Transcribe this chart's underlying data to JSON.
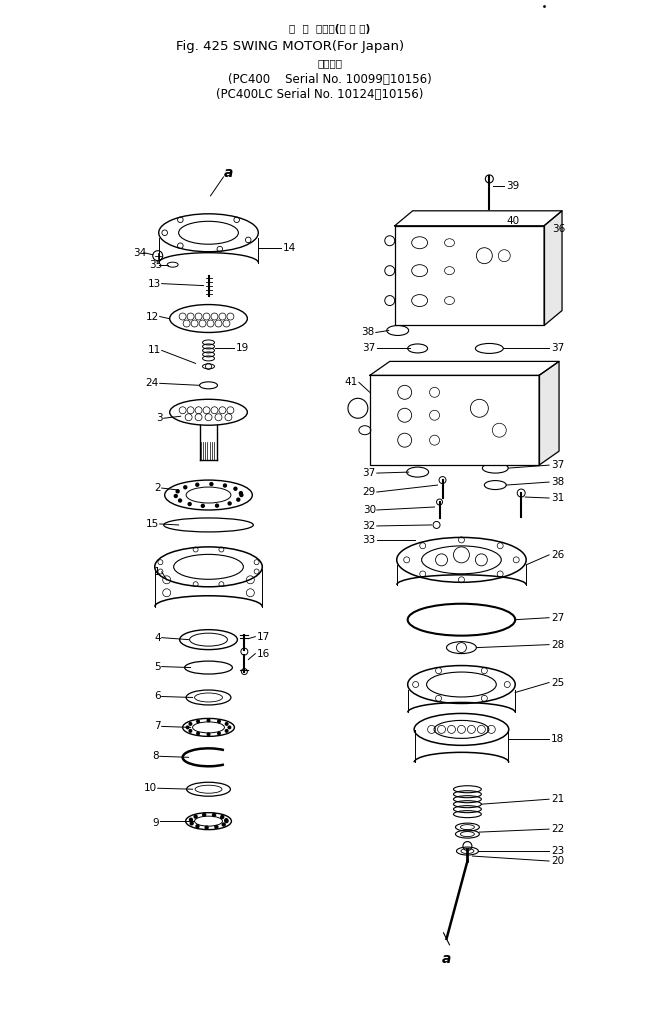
{
  "title_jp": "旋  回  モータ(国 内 向)",
  "title_en": "Fig. 425 SWING MOTOR(For Japan)",
  "subtitle_jp": "適用号機",
  "subtitle1": "(PC400    Serial No. 10099～10156)",
  "subtitle2": "(PC400LC Serial No. 10124～10156)",
  "bg_color": "#ffffff",
  "fg_color": "#000000"
}
